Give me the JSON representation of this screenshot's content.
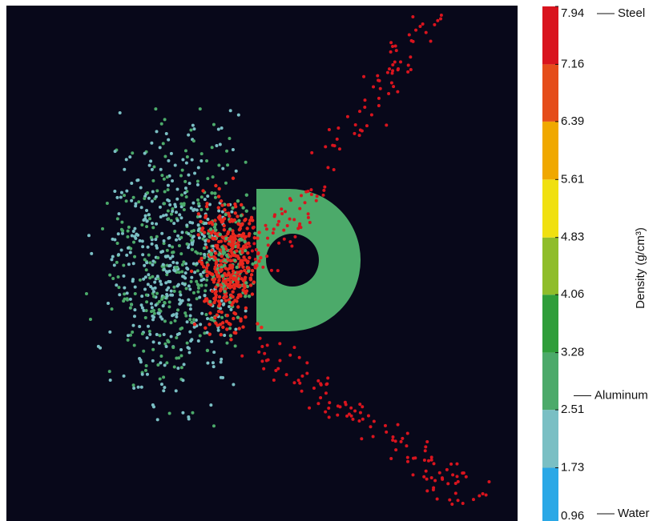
{
  "chart_data": {
    "type": "colorbar",
    "ylabel": "Density (g/cm³)",
    "ylim": [
      0.96,
      7.94
    ],
    "yticks": [
      0.96,
      1.73,
      2.51,
      3.28,
      4.06,
      4.83,
      5.61,
      6.39,
      7.16,
      7.94
    ],
    "colors": [
      "#2aa8e6",
      "#7abfc4",
      "#4caa6a",
      "#2f9e3a",
      "#8fbd2a",
      "#f0e010",
      "#f0a800",
      "#e54d1a",
      "#d9141e"
    ],
    "annotations": [
      {
        "text": "Steel",
        "value": 7.94
      },
      {
        "text": "Aluminum",
        "value": 2.7
      },
      {
        "text": "Water",
        "value": 0.96
      }
    ]
  }
}
